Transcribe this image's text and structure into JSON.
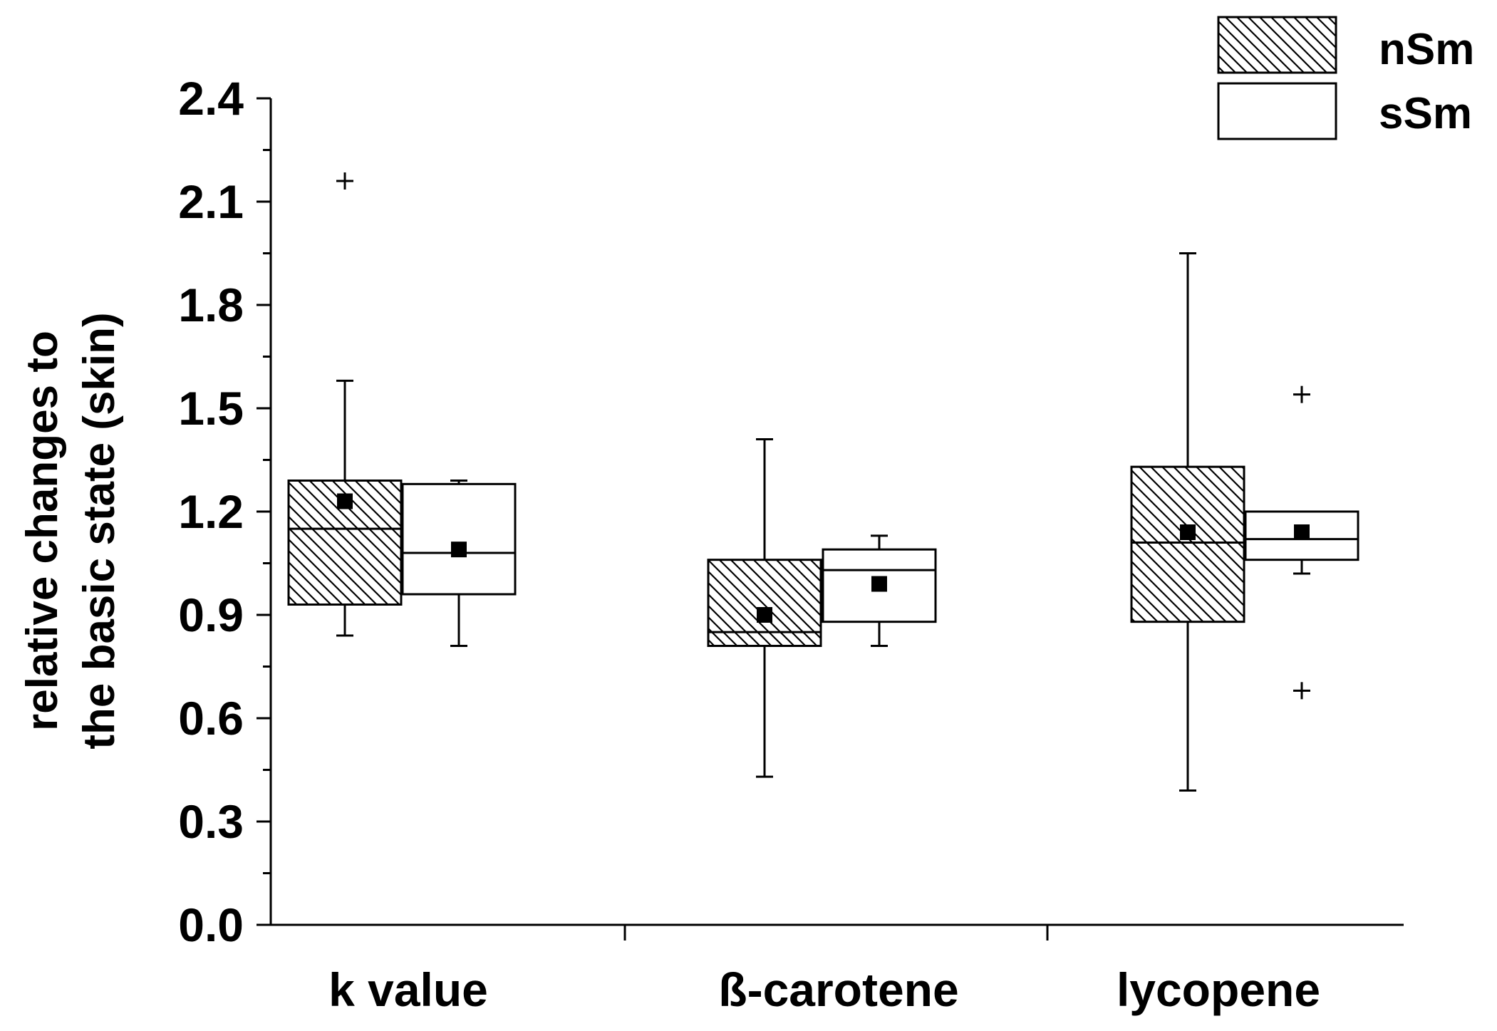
{
  "chart_data": {
    "type": "box",
    "title": "",
    "xlabel": "",
    "ylabel_lines": [
      "relative changes to",
      "the basic state (skin)"
    ],
    "ylim": [
      0.0,
      2.4
    ],
    "yticks": [
      "0.0",
      "0.3",
      "0.6",
      "0.9",
      "1.2",
      "1.5",
      "1.8",
      "2.1",
      "2.4"
    ],
    "categories": [
      "k value",
      "ß-carotene",
      "lycopene"
    ],
    "legend": [
      {
        "name": "nSm",
        "pattern": "hatched"
      },
      {
        "name": "sSm",
        "pattern": "open"
      }
    ],
    "series": [
      {
        "name": "nSm",
        "boxes": [
          {
            "whisker_low": 0.84,
            "q1": 0.93,
            "median": 1.15,
            "q3": 1.29,
            "whisker_high": 1.58,
            "mean": 1.23,
            "outliers": [
              2.16
            ]
          },
          {
            "whisker_low": 0.43,
            "q1": 0.81,
            "median": 0.85,
            "q3": 1.06,
            "whisker_high": 1.41,
            "mean": 0.9,
            "outliers": []
          },
          {
            "whisker_low": 0.39,
            "q1": 0.88,
            "median": 1.11,
            "q3": 1.33,
            "whisker_high": 1.95,
            "mean": 1.14,
            "outliers": []
          }
        ]
      },
      {
        "name": "sSm",
        "boxes": [
          {
            "whisker_low": 0.81,
            "q1": 0.96,
            "median": 1.08,
            "q3": 1.28,
            "whisker_high": 1.29,
            "mean": 1.09,
            "outliers": []
          },
          {
            "whisker_low": 0.81,
            "q1": 0.88,
            "median": 1.03,
            "q3": 1.09,
            "whisker_high": 1.13,
            "mean": 0.99,
            "outliers": []
          },
          {
            "whisker_low": 1.02,
            "q1": 1.06,
            "median": 1.12,
            "q3": 1.2,
            "whisker_high": 1.2,
            "mean": 1.14,
            "outliers": [
              0.68,
              1.54
            ]
          }
        ]
      }
    ]
  }
}
